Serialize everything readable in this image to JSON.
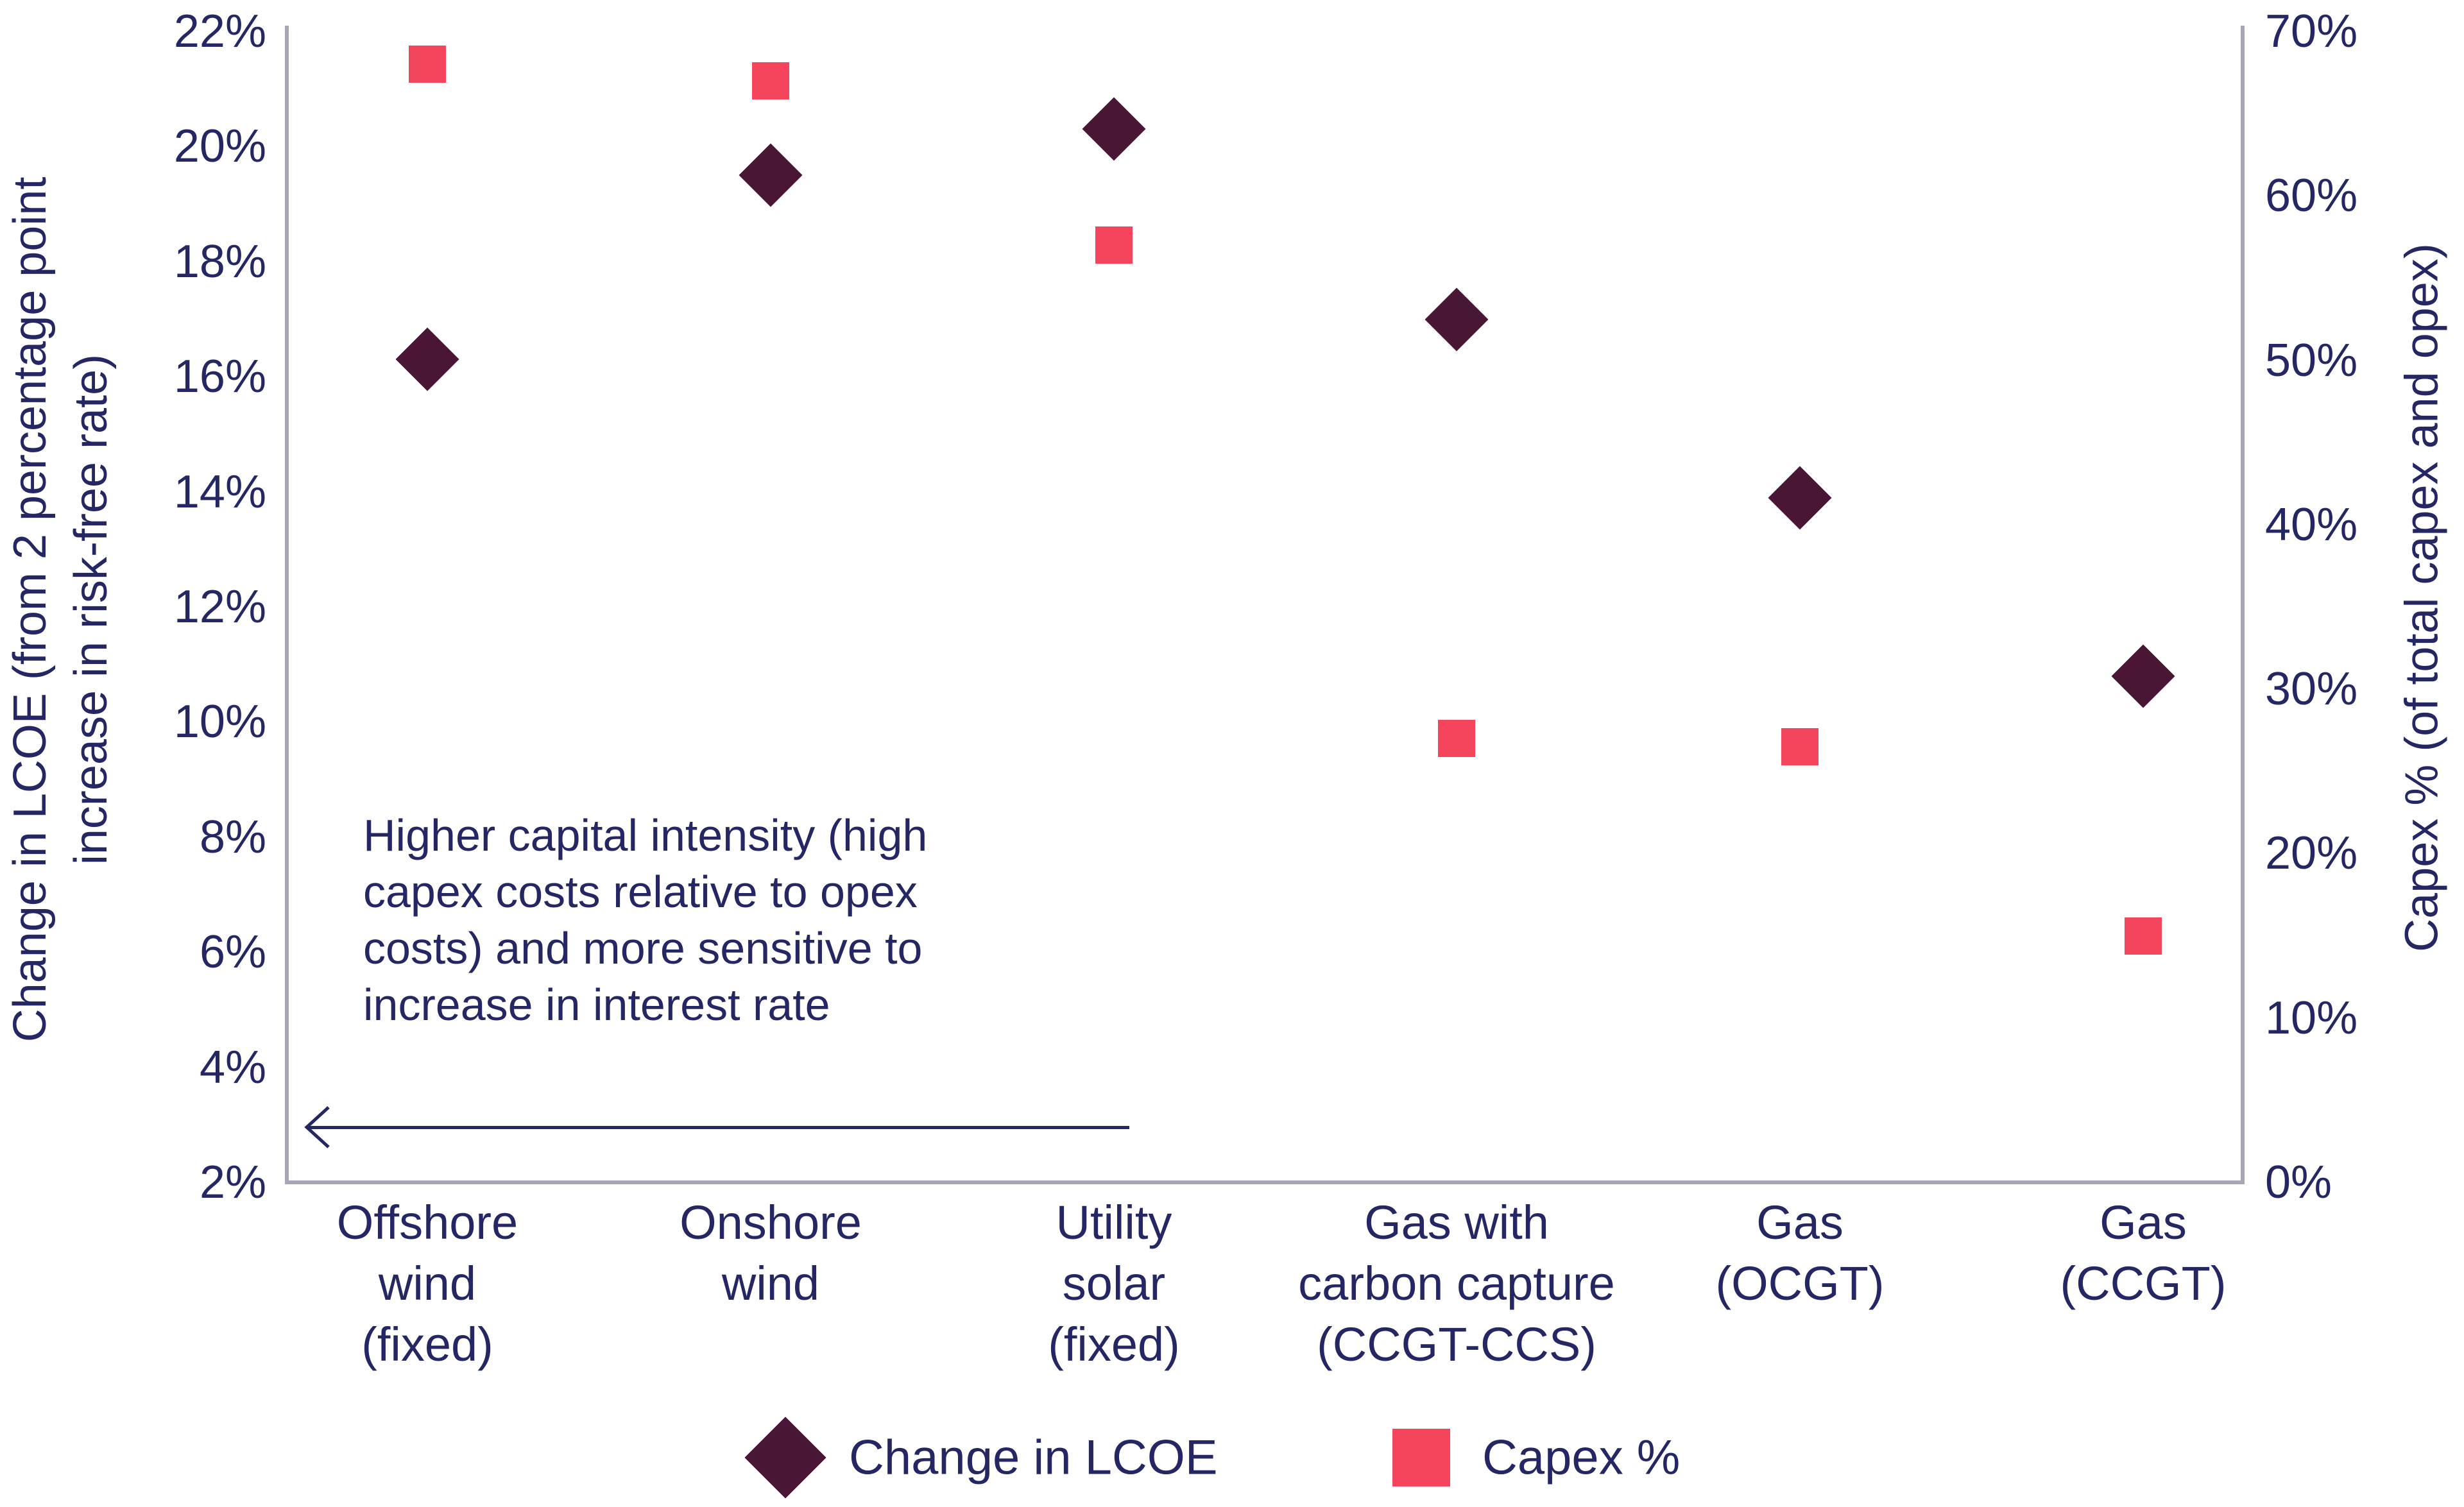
{
  "chart_data": {
    "type": "scatter",
    "title": "",
    "categories": [
      "Offshore wind (fixed)",
      "Onshore wind",
      "Utility solar (fixed)",
      "Gas with carbon capture (CCGT-CCS)",
      "Gas (OCGT)",
      "Gas (CCGT)"
    ],
    "category_lines": [
      [
        "Offshore",
        "wind",
        "(fixed)"
      ],
      [
        "Onshore",
        "wind"
      ],
      [
        "Utility",
        "solar",
        "(fixed)"
      ],
      [
        "Gas with",
        "carbon capture",
        "(CCGT-CCS)"
      ],
      [
        "Gas",
        "(OCGT)"
      ],
      [
        "Gas",
        "(CCGT)"
      ]
    ],
    "series": [
      {
        "name": "Change in LCOE",
        "marker": "diamond",
        "color": "#4A1635",
        "axis": "left",
        "unit": "%",
        "values": [
          16.3,
          19.5,
          20.3,
          17.0,
          13.9,
          10.8
        ]
      },
      {
        "name": "Capex %",
        "marker": "square",
        "color": "#F5455C",
        "axis": "right",
        "unit": "%",
        "values": [
          68,
          67,
          57,
          27,
          26.5,
          15
        ]
      }
    ],
    "left_axis": {
      "label": "Change in LCOE (from 2 percentage point increase in risk-free rate)",
      "label_lines": [
        "Change in LCOE (from 2 percentage point",
        "increase in risk-free rate)"
      ],
      "min": 2,
      "max": 22,
      "step": 2,
      "ticks": [
        "22%",
        "20%",
        "18%",
        "16%",
        "14%",
        "12%",
        "10%",
        "8%",
        "6%",
        "4%",
        "2%"
      ]
    },
    "right_axis": {
      "label": "Capex % (of total capex and opex)",
      "min": 0,
      "max": 70,
      "step": 10,
      "ticks": [
        "70%",
        "60%",
        "50%",
        "40%",
        "30%",
        "20%",
        "10%",
        "0%"
      ]
    },
    "annotation": {
      "text": "Higher capital intensity (high capex costs relative to opex costs) and more sensitive to increase in interest rate",
      "lines": [
        "Higher capital intensity (high",
        "capex costs relative to opex",
        "costs) and more sensitive to",
        "increase in interest rate"
      ],
      "arrow_direction": "left"
    },
    "legend": [
      {
        "label": "Change in LCOE",
        "marker": "diamond",
        "color": "#4A1635"
      },
      {
        "label": "Capex %",
        "marker": "square",
        "color": "#F5455C"
      }
    ],
    "grid": false,
    "legend_position": "bottom"
  },
  "colors": {
    "text": "#242763",
    "lcoe_marker": "#4A1635",
    "capex_marker": "#F5455C",
    "axis_line": "#A7A7B7",
    "background": "#FFFFFF"
  }
}
